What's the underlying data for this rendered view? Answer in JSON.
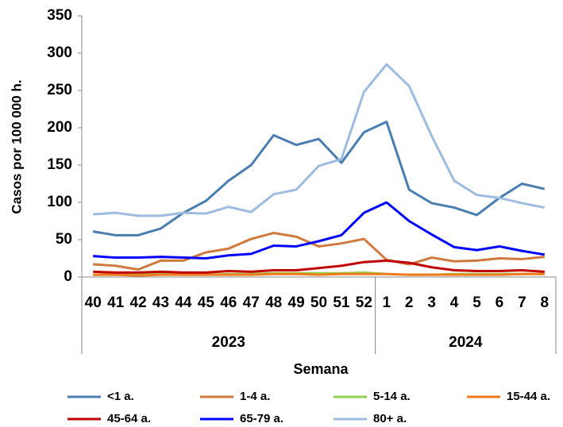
{
  "chart_data": {
    "type": "line",
    "y_label": "Casos por 100 000 h.",
    "x_label": "Semana",
    "category_groups": [
      {
        "label": "2023",
        "categories": [
          "40",
          "41",
          "42",
          "43",
          "44",
          "45",
          "46",
          "47",
          "48",
          "49",
          "50",
          "51",
          "52"
        ]
      },
      {
        "label": "2024",
        "categories": [
          "1",
          "2",
          "3",
          "4",
          "5",
          "6",
          "7",
          "8"
        ]
      }
    ],
    "ylim": [
      0,
      350
    ],
    "yticks": [
      0,
      50,
      100,
      150,
      200,
      250,
      300,
      350
    ],
    "grid": false,
    "legend": "bottom",
    "series": [
      {
        "name": "<1 a.",
        "color": "#4a7eb0",
        "values": [
          61,
          56,
          56,
          65,
          86,
          102,
          129,
          150,
          190,
          177,
          185,
          153,
          194,
          208,
          117,
          99,
          93,
          83,
          106,
          125,
          118
        ]
      },
      {
        "name": "1-4 a.",
        "color": "#d0793c",
        "values": [
          17,
          15,
          10,
          22,
          22,
          33,
          38,
          51,
          59,
          54,
          41,
          45,
          51,
          23,
          17,
          26,
          21,
          22,
          25,
          24,
          27
        ]
      },
      {
        "name": "5-14 a.",
        "color": "#92d050",
        "values": [
          3,
          3,
          3,
          4,
          3,
          3,
          4,
          4,
          5,
          5,
          5,
          5,
          6,
          4,
          3,
          3,
          4,
          4,
          4,
          4,
          4
        ]
      },
      {
        "name": "15-44 a.",
        "color": "#f07a1e",
        "values": [
          3,
          3,
          2,
          3,
          3,
          3,
          3,
          3,
          4,
          4,
          3,
          4,
          4,
          4,
          3,
          3,
          3,
          3,
          3,
          4,
          4
        ]
      },
      {
        "name": "45-64 a.",
        "color": "#c00000",
        "values": [
          7,
          6,
          6,
          7,
          6,
          6,
          8,
          7,
          9,
          9,
          12,
          15,
          20,
          22,
          19,
          13,
          9,
          8,
          8,
          9,
          7
        ]
      },
      {
        "name": "65-79 a.",
        "color": "#0000ff",
        "values": [
          28,
          26,
          26,
          27,
          26,
          25,
          29,
          31,
          42,
          41,
          48,
          56,
          86,
          100,
          75,
          57,
          40,
          36,
          41,
          35,
          30
        ]
      },
      {
        "name": "80+ a.",
        "color": "#9dbce0",
        "values": [
          84,
          86,
          82,
          82,
          86,
          85,
          94,
          87,
          111,
          117,
          149,
          158,
          248,
          285,
          256,
          189,
          129,
          110,
          106,
          99,
          93
        ]
      }
    ]
  }
}
